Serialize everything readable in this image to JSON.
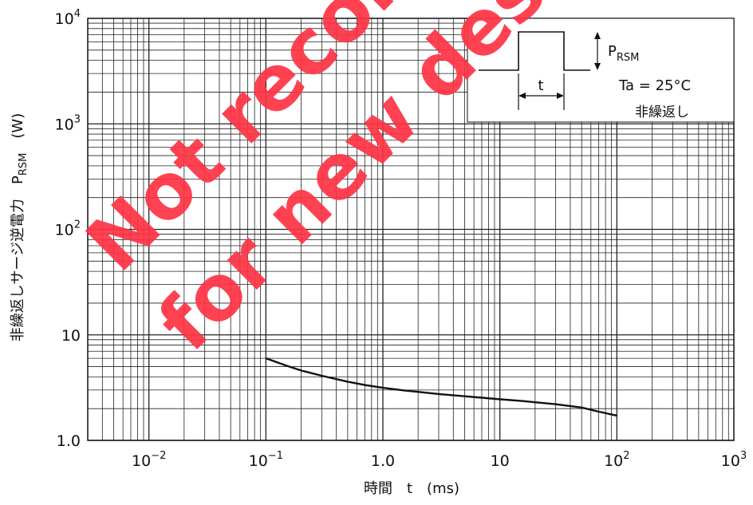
{
  "chart_data": {
    "type": "line",
    "x_scale": "log",
    "y_scale": "log",
    "xlim": [
      0.003,
      1000
    ],
    "ylim": [
      1,
      10000
    ],
    "grid": true,
    "xlabel": "時間　t　(ms)",
    "ylabel": {
      "main": "非繰返しサージ逆電力　P",
      "sub": "RSM",
      "unit": "　(W)"
    },
    "x_ticks": [
      {
        "value": 0.01,
        "base": "10",
        "exp": "−2"
      },
      {
        "value": 0.1,
        "base": "10",
        "exp": "−1"
      },
      {
        "value": 1,
        "base": "1.0",
        "exp": ""
      },
      {
        "value": 10,
        "base": "10",
        "exp": ""
      },
      {
        "value": 100,
        "base": "10",
        "exp": "2"
      },
      {
        "value": 1000,
        "base": "10",
        "exp": "3"
      }
    ],
    "y_ticks": [
      {
        "value": 1,
        "base": "1.0",
        "exp": ""
      },
      {
        "value": 10,
        "base": "10",
        "exp": ""
      },
      {
        "value": 100,
        "base": "10",
        "exp": "2"
      },
      {
        "value": 1000,
        "base": "10",
        "exp": "3"
      },
      {
        "value": 10000,
        "base": "10",
        "exp": "4"
      }
    ],
    "series": [
      {
        "x": [
          0.1,
          0.15,
          0.2,
          0.3,
          0.5,
          0.7,
          1,
          1.5,
          2,
          3,
          5,
          7,
          10,
          15,
          20,
          30,
          50,
          70,
          100
        ],
        "y": [
          6.0,
          5.1,
          4.6,
          4.1,
          3.6,
          3.35,
          3.15,
          2.98,
          2.88,
          2.75,
          2.62,
          2.54,
          2.45,
          2.37,
          2.3,
          2.2,
          2.05,
          1.87,
          1.72
        ]
      }
    ],
    "inset": {
      "pulse_symbol": "P",
      "pulse_sub": "RSM",
      "width_label": "t",
      "condition": "Ta = 25°C",
      "note": "非繰返し"
    },
    "watermark": [
      "Not recommended",
      "for new design"
    ],
    "line_color": "#111111",
    "grid_color": "#222222",
    "watermark_color": "#ff3344"
  }
}
